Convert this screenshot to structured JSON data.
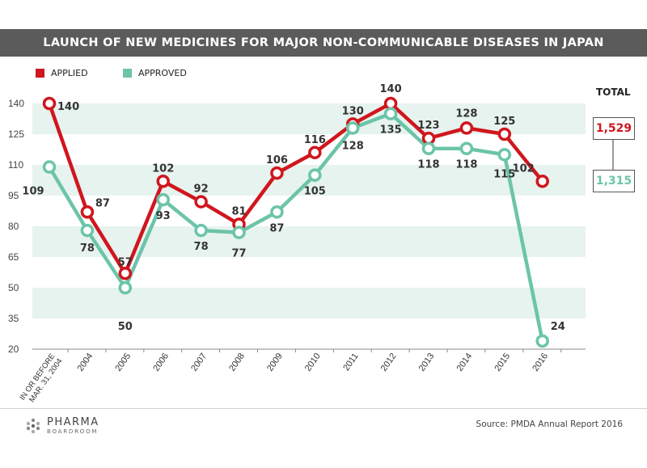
{
  "header": {
    "title": "LAUNCH OF NEW MEDICINES FOR MAJOR NON-COMMUNICABLE DISEASES IN JAPAN"
  },
  "legend": {
    "applied": "APPLIED",
    "approved": "APPROVED"
  },
  "totals": {
    "label": "TOTAL",
    "applied": "1,529",
    "approved": "1,315"
  },
  "footer": {
    "source": "Source: PMDA Annual Report 2016",
    "logo_name": "PHARMA",
    "logo_sub": "BOARDROOM"
  },
  "colors": {
    "applied": "#d0161e",
    "approved": "#6cc4a9",
    "band": "#e6f3ee",
    "title_bg": "#5b5b5b"
  },
  "chart_data": {
    "type": "line",
    "title": "LAUNCH OF NEW MEDICINES FOR MAJOR NON-COMMUNICABLE DISEASES IN JAPAN",
    "categories": [
      "IN OR BEFORE MAR. 31, 2004",
      "2004",
      "2005",
      "2006",
      "2007",
      "2008",
      "2009",
      "2010",
      "2011",
      "2012",
      "2013",
      "2014",
      "2015",
      "2016"
    ],
    "series": [
      {
        "name": "APPLIED",
        "values": [
          140,
          87,
          57,
          102,
          92,
          81,
          106,
          116,
          130,
          140,
          123,
          128,
          125,
          102
        ]
      },
      {
        "name": "APPROVED",
        "values": [
          109,
          78,
          50,
          93,
          78,
          77,
          87,
          105,
          128,
          135,
          118,
          118,
          115,
          24
        ]
      }
    ],
    "yticks": [
      140,
      125,
      110,
      95,
      80,
      65,
      50,
      35,
      20
    ],
    "ylim": [
      20,
      140
    ],
    "xlabel": "",
    "ylabel": "",
    "legend_position": "top-left",
    "grid": "alternating horizontal bands"
  }
}
